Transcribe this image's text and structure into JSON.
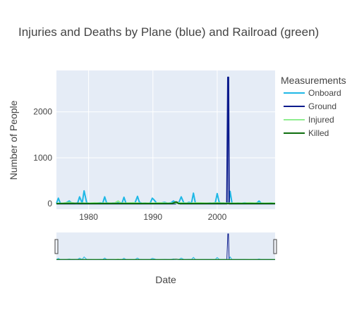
{
  "chart_data": {
    "type": "line",
    "title": "Injuries and Deaths by Plane (blue) and Railroad (green)",
    "xlabel": "Date",
    "ylabel": "Number of People",
    "xlim": [
      1975,
      2009
    ],
    "ylim": [
      -120,
      2900
    ],
    "x_ticks": [
      "1980",
      "1990",
      "2000"
    ],
    "x_tick_values": [
      1980,
      1990,
      2000
    ],
    "y_ticks": [
      "0",
      "1000",
      "2000"
    ],
    "y_tick_values": [
      0,
      1000,
      2000
    ],
    "grid": true,
    "legend_position": "right",
    "legend_title": "Measurements",
    "range_slider": true,
    "series": [
      {
        "name": "Onboard",
        "color": "#1fb8e6",
        "x": [
          1975.0,
          1975.3,
          1975.6,
          1976.0,
          1976.5,
          1977.0,
          1977.4,
          1977.8,
          1978.3,
          1978.6,
          1979.0,
          1979.3,
          1979.7,
          1980.2,
          1980.7,
          1981.2,
          1981.8,
          1982.2,
          1982.5,
          1982.8,
          1983.3,
          1983.8,
          1984.3,
          1984.8,
          1985.2,
          1985.5,
          1985.8,
          1986.3,
          1986.8,
          1987.2,
          1987.6,
          1987.9,
          1988.3,
          1988.8,
          1989.3,
          1989.6,
          1989.9,
          1990.2,
          1990.6,
          1991.2,
          1991.8,
          1992.3,
          1992.8,
          1993.2,
          1993.6,
          1994.0,
          1994.4,
          1994.8,
          1995.2,
          1995.6,
          1996.0,
          1996.3,
          1996.6,
          1996.9,
          1997.4,
          1997.9,
          1998.4,
          1998.9,
          1999.3,
          1999.7,
          2000.0,
          2000.3,
          2000.6,
          2001.0,
          2001.4,
          2001.8,
          2002.0,
          2002.3,
          2002.7,
          2003.2,
          2003.8,
          2004.3,
          2004.8,
          2005.3,
          2005.8,
          2006.2,
          2006.5,
          2006.8,
          2007.3,
          2007.8,
          2008.3,
          2008.8,
          2009.0
        ],
        "values": [
          5,
          120,
          10,
          8,
          20,
          60,
          10,
          5,
          15,
          150,
          10,
          280,
          20,
          5,
          10,
          15,
          20,
          10,
          150,
          20,
          5,
          15,
          10,
          25,
          10,
          140,
          15,
          5,
          20,
          10,
          160,
          30,
          10,
          15,
          5,
          20,
          120,
          80,
          10,
          15,
          30,
          10,
          20,
          60,
          15,
          10,
          150,
          20,
          10,
          30,
          15,
          230,
          20,
          10,
          15,
          5,
          10,
          15,
          10,
          20,
          220,
          30,
          10,
          15,
          5,
          20,
          270,
          10,
          5,
          15,
          10,
          20,
          10,
          15,
          5,
          20,
          60,
          15,
          10,
          5,
          15,
          10,
          5
        ]
      },
      {
        "name": "Ground",
        "color": "#0a1a8c",
        "x": [
          1975.0,
          1993.5,
          1993.8,
          1994.2,
          2001.5,
          2001.65,
          2001.75,
          2001.85,
          2002.0,
          2009.0
        ],
        "values": [
          0,
          0,
          30,
          0,
          0,
          2750,
          2750,
          0,
          0,
          0
        ]
      },
      {
        "name": "Injured",
        "color": "#90ee90",
        "x": [
          1975.0,
          1976.0,
          1977.0,
          1978.0,
          1979.0,
          1980.0,
          1981.0,
          1982.0,
          1983.0,
          1984.0,
          1984.6,
          1985.0,
          1986.0,
          1987.0,
          1988.0,
          1989.0,
          1990.0,
          1991.0,
          1992.0,
          1993.0,
          1994.0,
          1995.0,
          1996.0,
          1997.0,
          1998.0,
          1999.0,
          2000.0,
          2001.0,
          2002.0,
          2003.0,
          2004.0,
          2005.0,
          2006.0,
          2007.0,
          2008.0,
          2009.0
        ],
        "values": [
          5,
          10,
          30,
          8,
          15,
          10,
          20,
          10,
          15,
          10,
          60,
          10,
          15,
          20,
          10,
          15,
          10,
          20,
          15,
          10,
          20,
          15,
          10,
          20,
          15,
          10,
          20,
          15,
          10,
          15,
          10,
          20,
          15,
          10,
          15,
          10
        ]
      },
      {
        "name": "Killed",
        "color": "#0d6e0d",
        "x": [
          1975.0,
          1978.0,
          1981.0,
          1984.0,
          1987.0,
          1990.0,
          1993.0,
          1993.6,
          1994.0,
          1997.0,
          2000.0,
          2003.0,
          2006.0,
          2009.0
        ],
        "values": [
          2,
          5,
          3,
          4,
          2,
          3,
          4,
          40,
          3,
          2,
          4,
          3,
          2,
          3
        ]
      }
    ]
  }
}
